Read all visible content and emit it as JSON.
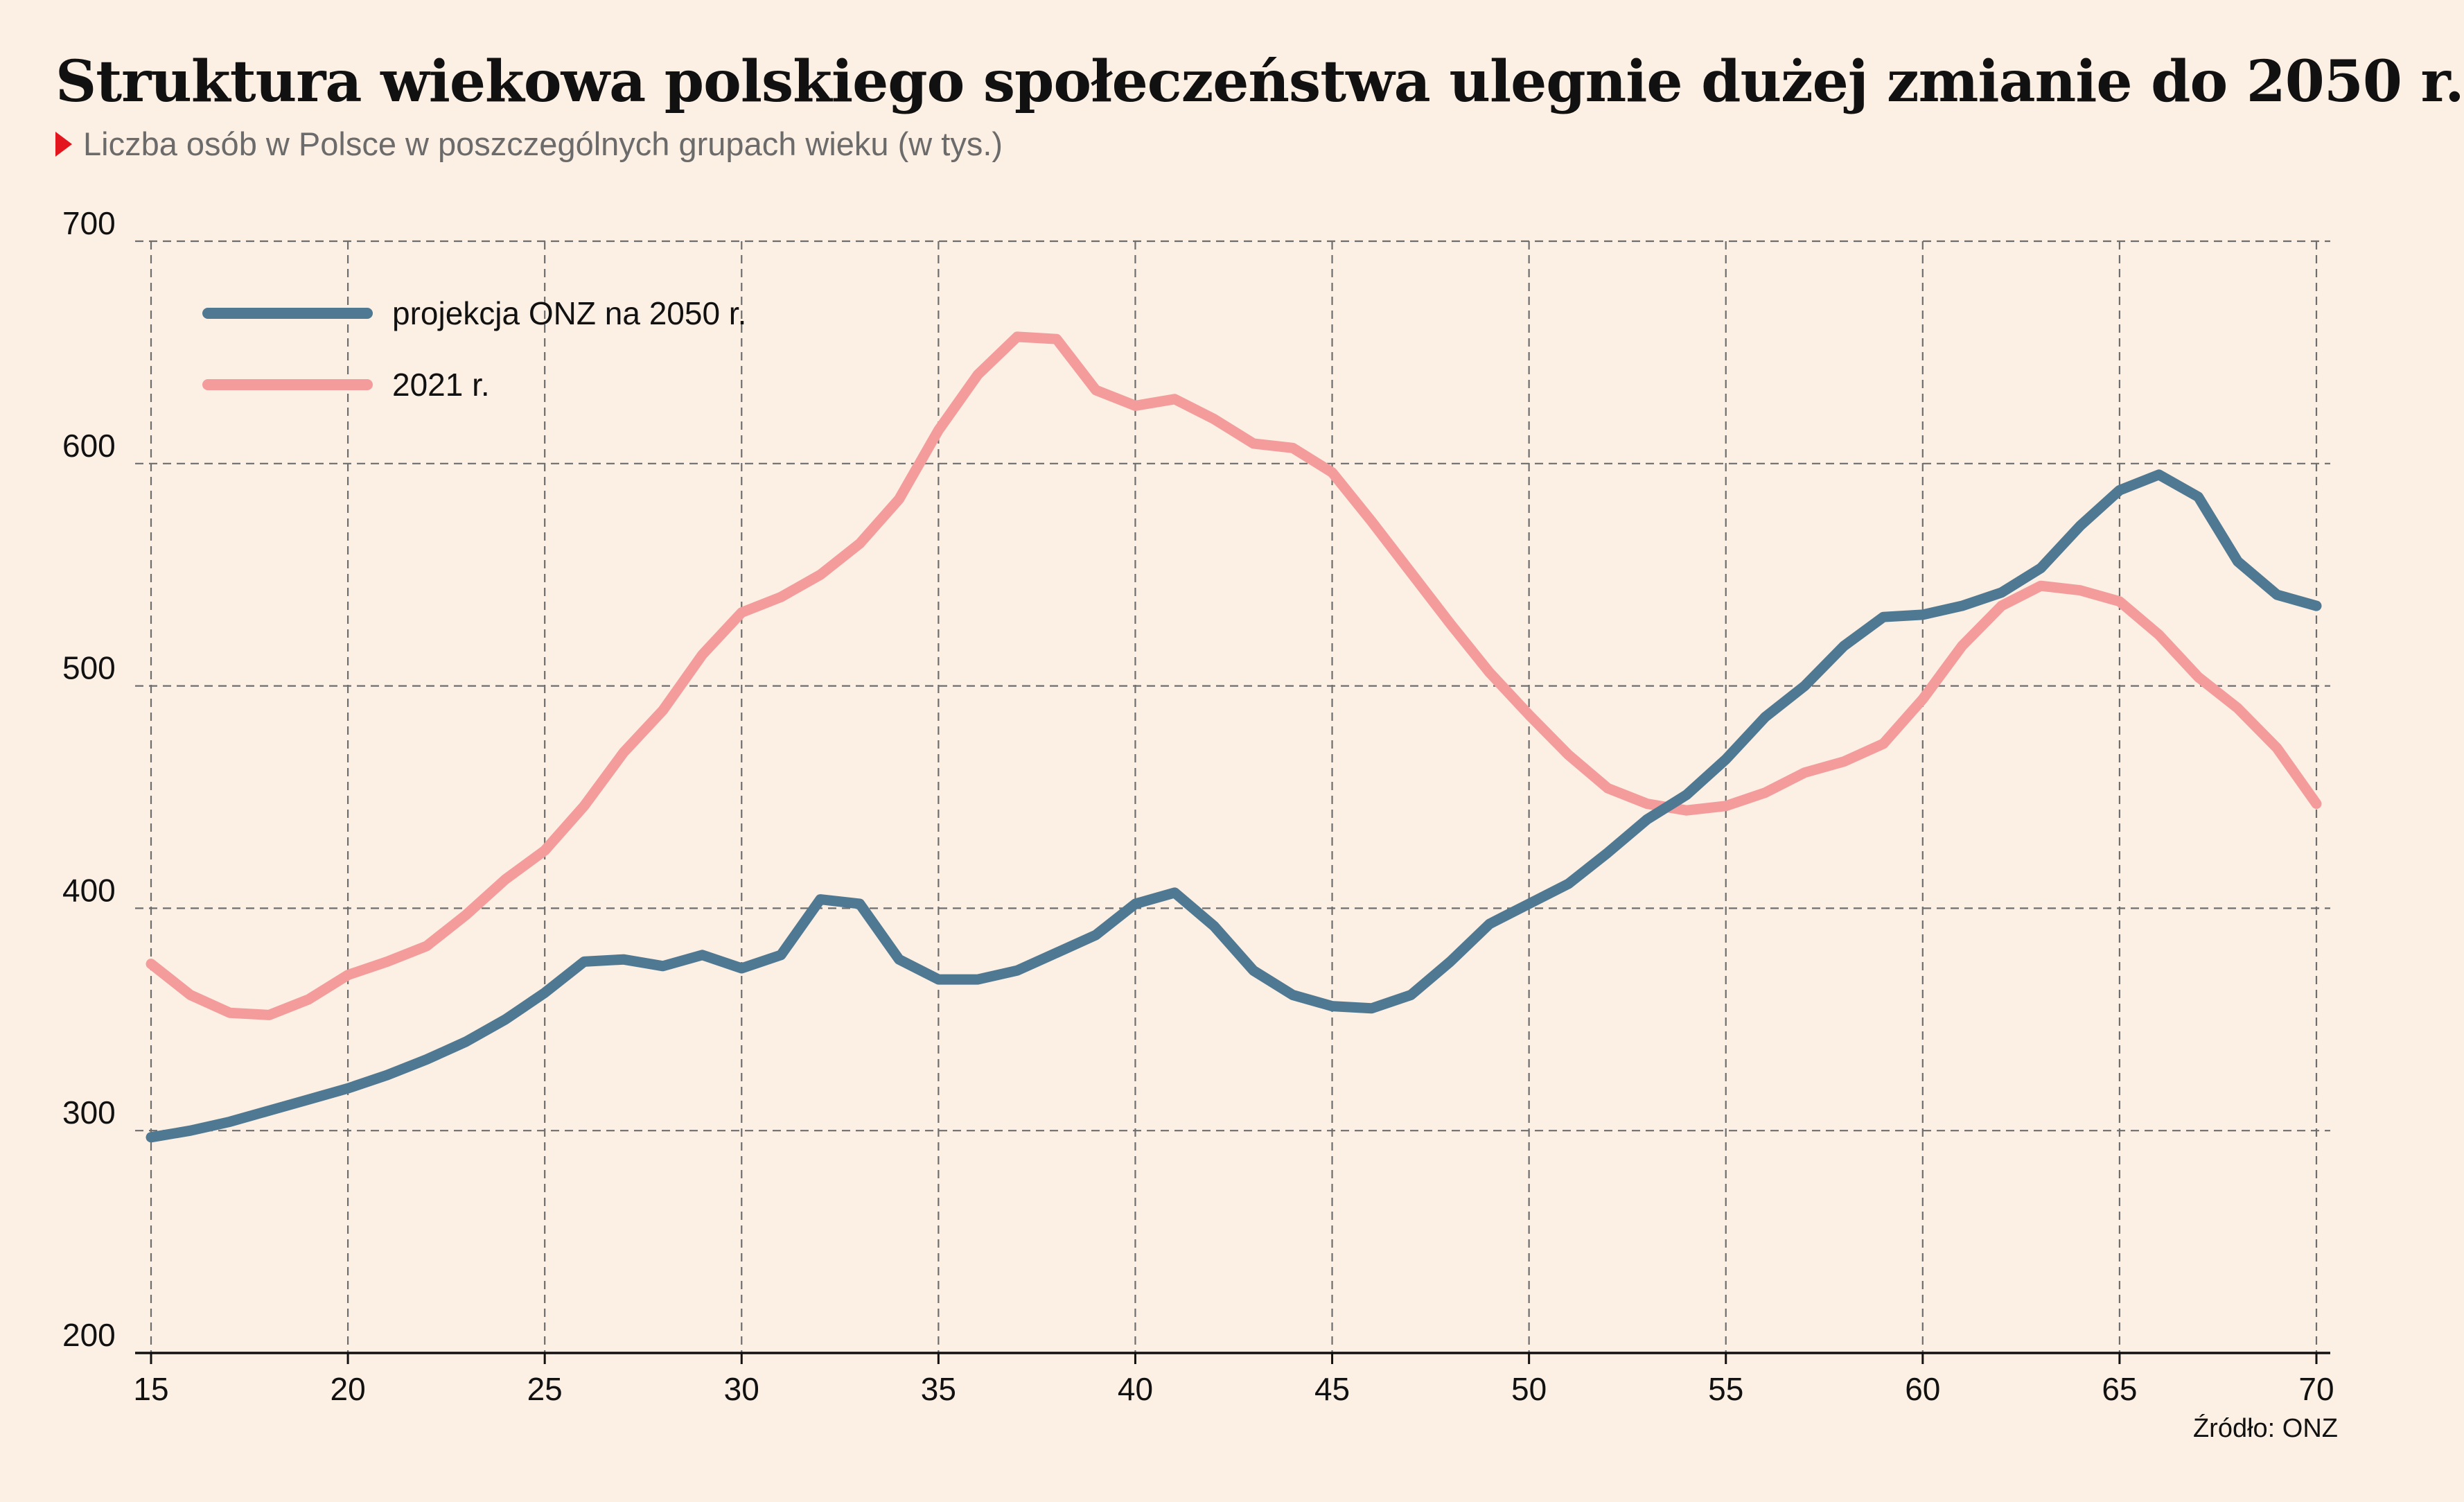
{
  "header": {
    "title": "Struktura wiekowa polskiego społeczeństwa ulegnie dużej zmianie do 2050 r.",
    "subtitle": "Liczba osób w Polsce w poszczególnych grupach wieku (w tys.)"
  },
  "footer": {
    "source": "Źródło: ONZ"
  },
  "chart_data": {
    "type": "line",
    "title": "Struktura wiekowa polskiego społeczeństwa ulegnie dużej zmianie do 2050 r.",
    "subtitle": "Liczba osób w Polsce w poszczególnych grupach wieku (w tys.)",
    "xlabel": "",
    "ylabel": "",
    "xlim": [
      15,
      70
    ],
    "ylim": [
      200,
      700
    ],
    "xticks": [
      15,
      20,
      25,
      30,
      35,
      40,
      45,
      50,
      55,
      60,
      65,
      70
    ],
    "yticks": [
      200,
      300,
      400,
      500,
      600,
      700
    ],
    "grid": true,
    "grid_style": "dashed",
    "legend_position": "top-left",
    "x": [
      15,
      16,
      17,
      18,
      19,
      20,
      21,
      22,
      23,
      24,
      25,
      26,
      27,
      28,
      29,
      30,
      31,
      32,
      33,
      34,
      35,
      36,
      37,
      38,
      39,
      40,
      41,
      42,
      43,
      44,
      45,
      46,
      47,
      48,
      49,
      50,
      51,
      52,
      53,
      54,
      55,
      56,
      57,
      58,
      59,
      60,
      61,
      62,
      63,
      64,
      65,
      66,
      67,
      68,
      69,
      70
    ],
    "series": [
      {
        "name": "projekcja ONZ na 2050 r.",
        "color": "#4f7893",
        "values": [
          297,
          300,
          304,
          309,
          314,
          319,
          325,
          332,
          340,
          350,
          362,
          376,
          377,
          374,
          379,
          373,
          379,
          404,
          402,
          377,
          368,
          368,
          372,
          380,
          388,
          402,
          407,
          392,
          372,
          361,
          356,
          355,
          361,
          376,
          393,
          402,
          411,
          425,
          440,
          451,
          467,
          486,
          500,
          518,
          531,
          532,
          536,
          542,
          553,
          572,
          588,
          595,
          585,
          556,
          541,
          536
        ]
      },
      {
        "name": "2021 r.",
        "color": "#f49b9b",
        "values": [
          375,
          361,
          353,
          352,
          359,
          370,
          376,
          383,
          397,
          413,
          426,
          446,
          470,
          489,
          514,
          533,
          540,
          550,
          564,
          584,
          615,
          640,
          657,
          656,
          633,
          626,
          629,
          620,
          609,
          607,
          596,
          574,
          551,
          528,
          506,
          487,
          469,
          454,
          447,
          444,
          446,
          452,
          461,
          466,
          474,
          494,
          518,
          536,
          545,
          543,
          538,
          523,
          504,
          490,
          472,
          447
        ]
      }
    ]
  }
}
